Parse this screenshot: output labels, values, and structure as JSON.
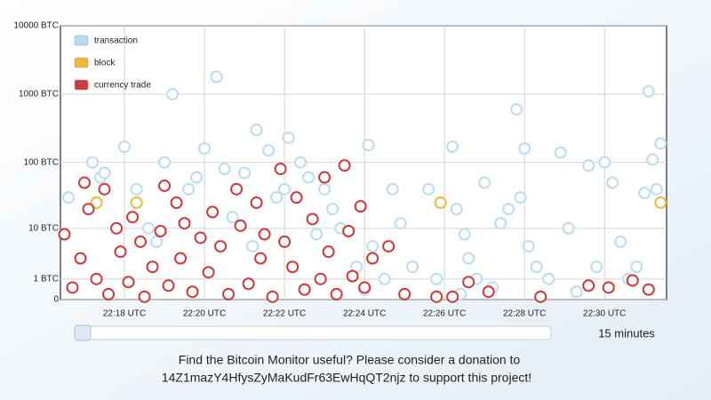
{
  "chart_data": {
    "type": "scatter",
    "yscale": "log1p",
    "grid": true,
    "legend_position": "upper-left",
    "xlim": [
      16.4,
      31.55
    ],
    "xticks": [
      {
        "value": 18,
        "label": "22:18 UTC"
      },
      {
        "value": 20,
        "label": "22:20 UTC"
      },
      {
        "value": 22,
        "label": "22:22 UTC"
      },
      {
        "value": 24,
        "label": "22:24 UTC"
      },
      {
        "value": 26,
        "label": "22:26 UTC"
      },
      {
        "value": 28,
        "label": "22:28 UTC"
      },
      {
        "value": 30,
        "label": "22:30 UTC"
      }
    ],
    "ylim": [
      0,
      10000
    ],
    "yticks": [
      0,
      {
        "value": 1,
        "label": "1 BTC"
      },
      {
        "value": 10,
        "label": "10 BTC"
      },
      {
        "value": 100,
        "label": "100 BTC"
      },
      {
        "value": 1000,
        "label": "1000 BTC"
      },
      {
        "value": 10000,
        "label": "10000 BTC"
      }
    ],
    "series": [
      {
        "name": "transaction",
        "color": "#b9dcf3",
        "x": [
          16.6,
          17.2,
          17.4,
          17.5,
          18.0,
          18.3,
          18.6,
          19.0,
          19.2,
          19.6,
          20.0,
          20.3,
          20.5,
          21.0,
          21.2,
          21.3,
          21.6,
          21.8,
          22.0,
          22.1,
          22.4,
          22.6,
          23.0,
          23.2,
          23.4,
          23.8,
          24.1,
          24.2,
          24.5,
          24.7,
          24.9,
          25.2,
          25.6,
          25.8,
          26.2,
          26.3,
          26.5,
          26.6,
          26.8,
          27.0,
          27.2,
          27.4,
          27.6,
          27.8,
          28.0,
          28.1,
          28.3,
          28.6,
          28.9,
          29.1,
          29.3,
          29.6,
          29.8,
          30.0,
          30.2,
          30.4,
          30.6,
          30.8,
          31.0,
          31.1,
          31.2,
          31.3,
          31.4,
          20.7,
          22.8,
          24.0,
          27.9,
          26.4,
          19.8,
          18.8
        ],
        "values": [
          30,
          100,
          60,
          70,
          170,
          40,
          10,
          100,
          1000,
          40,
          160,
          1800,
          80,
          70,
          5,
          300,
          150,
          30,
          40,
          230,
          100,
          60,
          40,
          20,
          10,
          2,
          180,
          5,
          1,
          40,
          12,
          2,
          40,
          1,
          170,
          20,
          8,
          3,
          1,
          50,
          0.5,
          12,
          20,
          600,
          160,
          5,
          2,
          1,
          140,
          10,
          0.3,
          90,
          2,
          100,
          50,
          6,
          1,
          2,
          35,
          1100,
          110,
          40,
          190,
          15,
          8,
          0.4,
          30,
          0.2,
          60,
          6
        ]
      },
      {
        "name": "block",
        "color": "#f0b93a",
        "x": [
          17.3,
          18.3,
          25.9,
          31.4
        ],
        "values": [
          25,
          25,
          25,
          25
        ]
      },
      {
        "name": "currency trade",
        "color": "#cc3a3a",
        "x": [
          16.5,
          16.7,
          16.9,
          17.0,
          17.1,
          17.3,
          17.5,
          17.6,
          17.8,
          17.9,
          18.1,
          18.2,
          18.4,
          18.5,
          18.7,
          18.9,
          19.0,
          19.1,
          19.3,
          19.4,
          19.5,
          19.7,
          19.9,
          20.1,
          20.2,
          20.4,
          20.6,
          20.8,
          20.9,
          21.1,
          21.3,
          21.4,
          21.5,
          21.7,
          21.9,
          22.0,
          22.2,
          22.3,
          22.5,
          22.7,
          22.9,
          23.0,
          23.1,
          23.3,
          23.5,
          23.6,
          23.7,
          23.9,
          24.0,
          24.2,
          24.6,
          25.0,
          25.8,
          26.2,
          26.6,
          27.1,
          28.4,
          29.6,
          30.1,
          30.7,
          31.1
        ],
        "values": [
          8,
          0.5,
          3,
          50,
          20,
          1,
          40,
          0.2,
          10,
          4,
          0.8,
          15,
          6,
          0.1,
          2,
          9,
          45,
          0.6,
          25,
          3,
          12,
          0.3,
          7,
          1.5,
          18,
          5,
          0.2,
          40,
          11,
          0.7,
          25,
          3,
          8,
          0.1,
          80,
          6,
          2,
          30,
          0.4,
          14,
          1,
          60,
          4,
          0.2,
          90,
          9,
          1.2,
          22,
          0.5,
          3,
          5,
          0.2,
          0.1,
          0.1,
          0.8,
          0.3,
          0.1,
          0.6,
          0.5,
          0.9,
          0.4
        ]
      }
    ]
  },
  "controls": {
    "range_label": "15 minutes"
  },
  "footer": {
    "line1": "Find the Bitcoin Monitor useful? Please consider a donation to",
    "line2": "14Z1mazY4HfysZyMaKudFr63EwHqQT2njz to support this project!"
  }
}
